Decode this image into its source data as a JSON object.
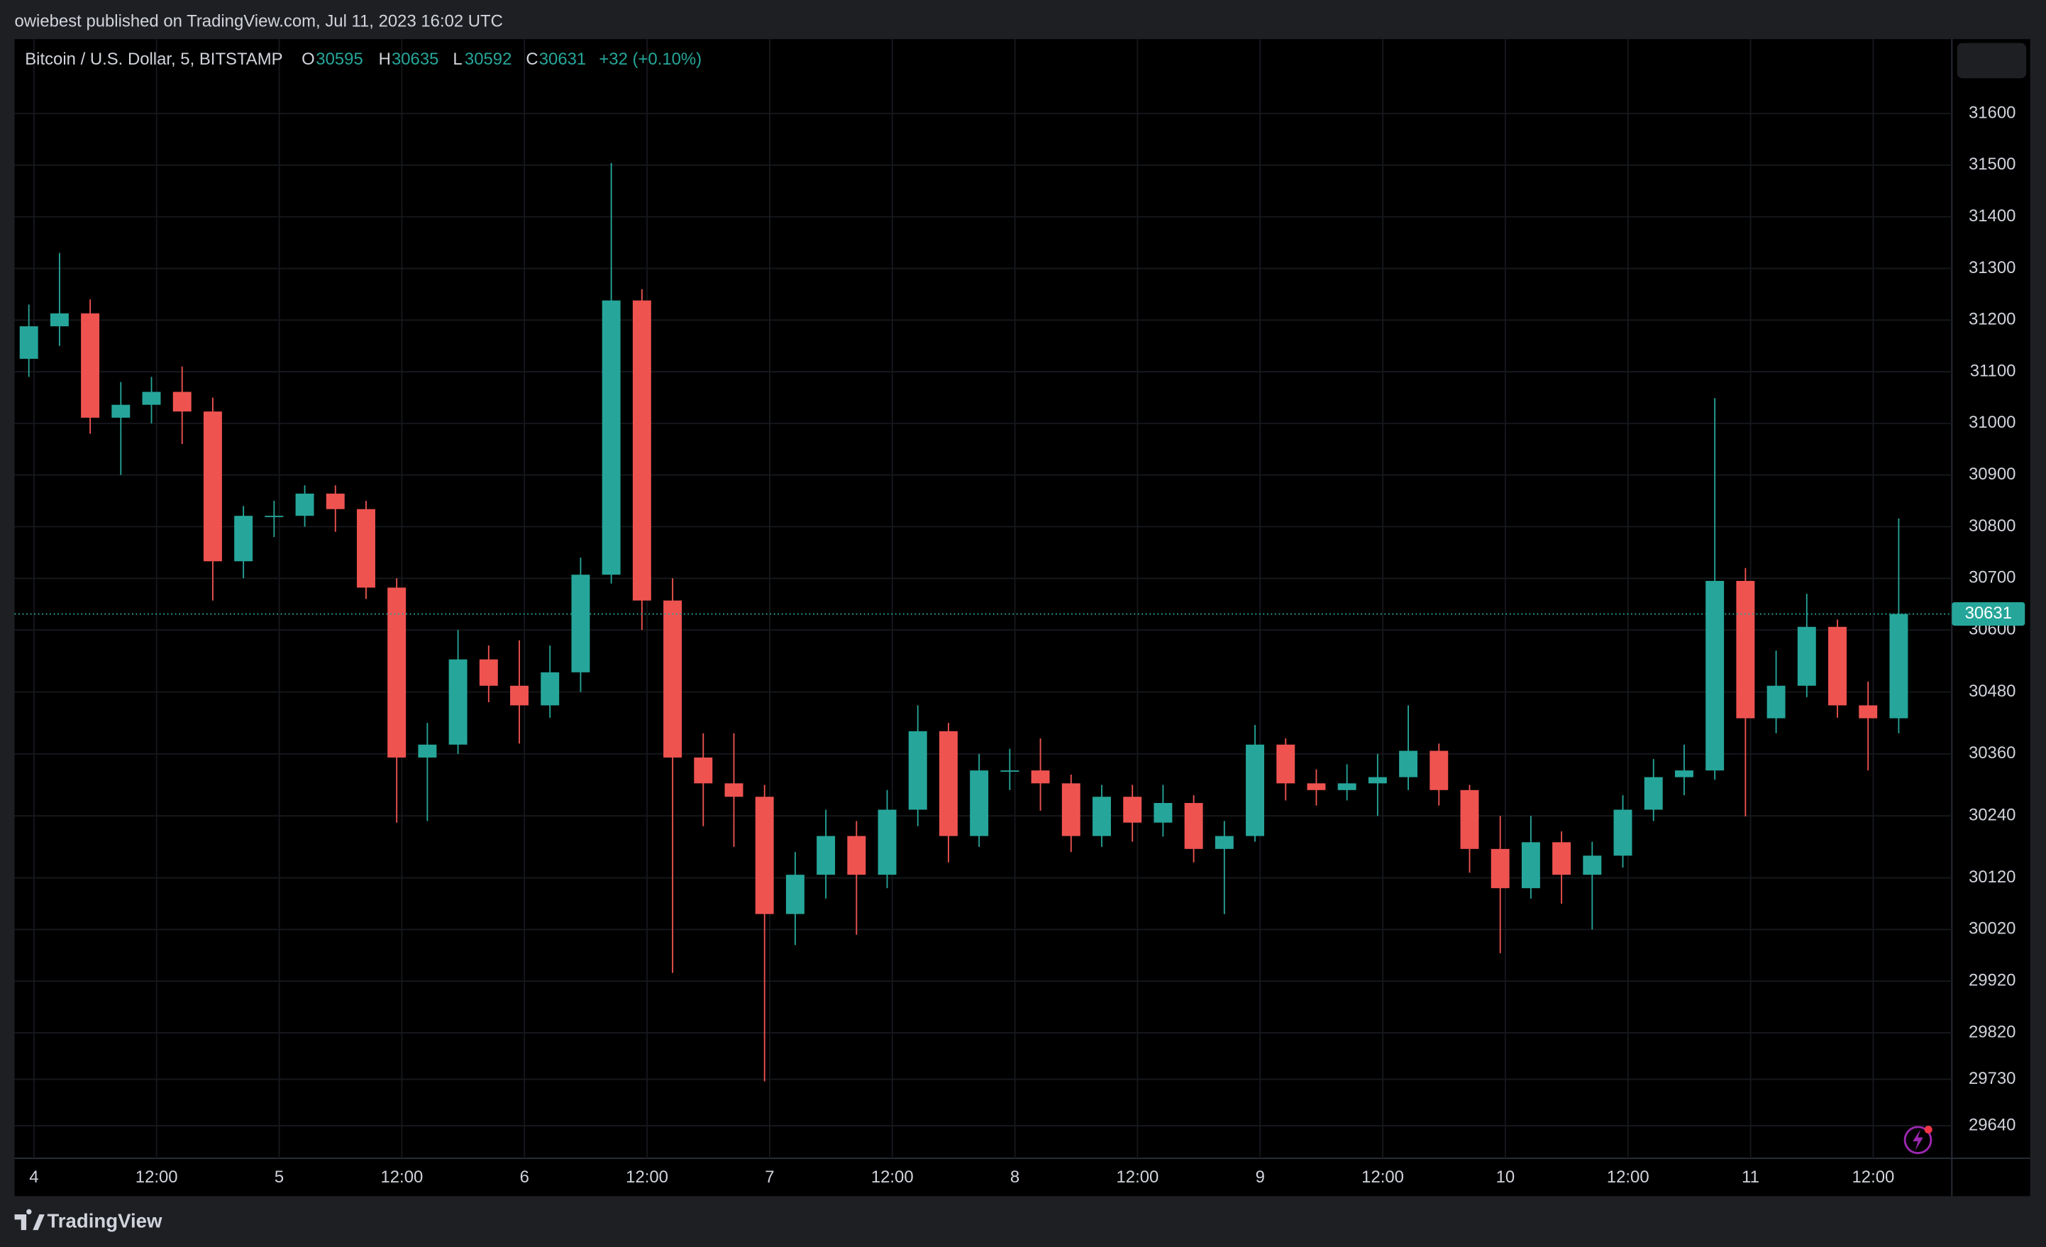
{
  "header": {
    "published": "owiebest published on TradingView.com, Jul 11, 2023 16:02 UTC"
  },
  "footer": {
    "brand": "TradingView"
  },
  "chart_data": {
    "type": "candlestick",
    "legend": {
      "symbol": "Bitcoin / U.S. Dollar, 5, BITSTAMP",
      "items": [
        {
          "label": "O",
          "value": 30595
        },
        {
          "label": "H",
          "value": 30635
        },
        {
          "label": "L",
          "value": 30592
        },
        {
          "label": "C",
          "value": 30631
        }
      ],
      "change": "+32 (+0.10%)"
    },
    "up_color": "#26a69a",
    "down_color": "#ef5350",
    "last_price": 30631,
    "x": [
      -0.5,
      2.5,
      5.5,
      8.5,
      11.5,
      14.5,
      17.5,
      20.5,
      23.5,
      26.5,
      29.5,
      32.5,
      35.5,
      38.5,
      41.5,
      44.5,
      47.5,
      50.5,
      53.5,
      56.5,
      59.5,
      62.5,
      65.5,
      68.5,
      71.5,
      74.5,
      77.5,
      80.5,
      83.5,
      86.5,
      89.5,
      92.5,
      95.5,
      98.5,
      101.5,
      104.5,
      107.5,
      110.5,
      113.5,
      116.5,
      119.5,
      122.5,
      125.5,
      128.5,
      131.5,
      134.5,
      137.5,
      140.5,
      143.5,
      146.5,
      149.5,
      152.5,
      155.5,
      158.5,
      161.5,
      164.5,
      167.5,
      170.5,
      173.5,
      176.5,
      179.5,
      182.5
    ],
    "open": [
      31125,
      31188,
      31213,
      31011,
      31036,
      31061,
      31023,
      30733,
      30821,
      30821,
      30864,
      30834,
      30682,
      30353,
      30378,
      30543,
      30492,
      30454,
      30518,
      30707,
      31238,
      30657,
      30353,
      30303,
      30277,
      30050,
      30126,
      30201,
      30126,
      30252,
      30404,
      30201,
      30328,
      30328,
      30303,
      30201,
      30277,
      30227,
      30265,
      30176,
      30201,
      30378,
      30303,
      30290,
      30303,
      30315,
      30366,
      30290,
      30176,
      30100,
      30189,
      30126,
      30163,
      30252,
      30315,
      30328,
      30695,
      30429,
      30492,
      30606,
      30454,
      30429
    ],
    "high": [
      31230,
      31330,
      31240,
      31080,
      31090,
      31110,
      31050,
      30840,
      30850,
      30880,
      30880,
      30850,
      30700,
      30420,
      30600,
      30570,
      30580,
      30570,
      30740,
      31504,
      31260,
      30700,
      30400,
      30400,
      30300,
      30170,
      30252,
      30230,
      30290,
      30454,
      30420,
      30360,
      30370,
      30390,
      30320,
      30300,
      30300,
      30300,
      30280,
      30230,
      30416,
      30390,
      30330,
      30340,
      30360,
      30454,
      30380,
      30300,
      30240,
      30240,
      30210,
      30190,
      30280,
      30350,
      30378,
      31049,
      30720,
      30560,
      30670,
      30620,
      30500,
      30816
    ],
    "low": [
      31090,
      31150,
      30980,
      30900,
      31000,
      30960,
      30657,
      30700,
      30780,
      30800,
      30790,
      30660,
      30227,
      30230,
      30360,
      30460,
      30380,
      30430,
      30480,
      30690,
      30600,
      29936,
      30220,
      30180,
      29726,
      29990,
      30080,
      30010,
      30100,
      30220,
      30150,
      30180,
      30290,
      30250,
      30170,
      30180,
      30190,
      30200,
      30150,
      30050,
      30190,
      30270,
      30260,
      30270,
      30240,
      30290,
      30260,
      30130,
      29974,
      30080,
      30070,
      30020,
      30140,
      30230,
      30280,
      30310,
      30239,
      30400,
      30470,
      30430,
      30328,
      30400
    ],
    "close": [
      31188,
      31213,
      31011,
      31036,
      31061,
      31023,
      30733,
      30821,
      30821,
      30864,
      30834,
      30682,
      30353,
      30378,
      30543,
      30492,
      30454,
      30518,
      30707,
      31238,
      30657,
      30353,
      30303,
      30277,
      30050,
      30126,
      30201,
      30126,
      30252,
      30404,
      30201,
      30328,
      30328,
      30303,
      30201,
      30277,
      30227,
      30265,
      30176,
      30201,
      30378,
      30303,
      30290,
      30303,
      30315,
      30366,
      30290,
      30176,
      30100,
      30189,
      30126,
      30163,
      30252,
      30315,
      30328,
      30695,
      30429,
      30492,
      30606,
      30454,
      30429,
      30631
    ],
    "xlim": [
      -1.9,
      187.7
    ],
    "xticks": [
      {
        "value": 0,
        "label": "4"
      },
      {
        "value": 12,
        "label": "12:00"
      },
      {
        "value": 24,
        "label": "5"
      },
      {
        "value": 36,
        "label": "12:00"
      },
      {
        "value": 48,
        "label": "6"
      },
      {
        "value": 60,
        "label": "12:00"
      },
      {
        "value": 72,
        "label": "7"
      },
      {
        "value": 84,
        "label": "12:00"
      },
      {
        "value": 96,
        "label": "8"
      },
      {
        "value": 108,
        "label": "12:00"
      },
      {
        "value": 120,
        "label": "9"
      },
      {
        "value": 132,
        "label": "12:00"
      },
      {
        "value": 144,
        "label": "10"
      },
      {
        "value": 156,
        "label": "12:00"
      },
      {
        "value": 168,
        "label": "11"
      },
      {
        "value": 180,
        "label": "12:00"
      }
    ],
    "ylim": [
      29577,
      31744
    ],
    "yticks": [
      31600,
      31500,
      31400,
      31300,
      31200,
      31100,
      31000,
      30900,
      30800,
      30700,
      30600,
      30480,
      30360,
      30240,
      30120,
      30020,
      29920,
      29820,
      29730,
      29640
    ],
    "grid": true
  }
}
